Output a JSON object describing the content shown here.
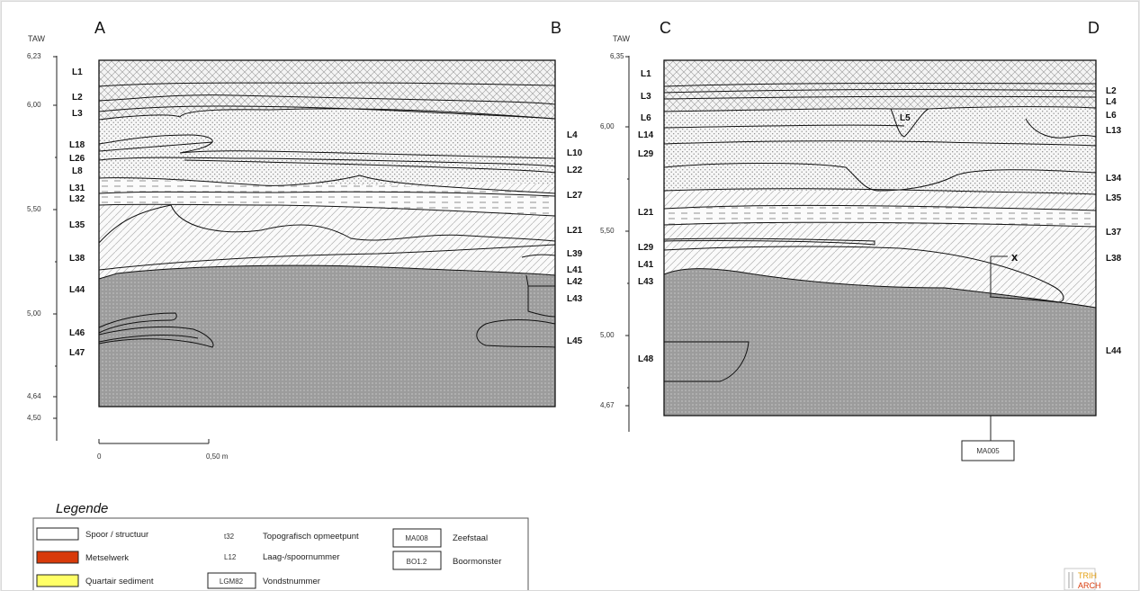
{
  "profile_left": {
    "corner_left": "A",
    "corner_right": "B",
    "axis_label": "TAW",
    "ticks": [
      "6,23",
      "6,00",
      "5,50",
      "5,00",
      "4,64",
      "4,50"
    ],
    "labels_left": [
      "L1",
      "L2",
      "L3",
      "L18",
      "L26",
      "L8",
      "L31",
      "L32",
      "L35",
      "L38",
      "L44",
      "L46",
      "L47"
    ],
    "labels_right": [
      "L4",
      "L10",
      "L22",
      "L27",
      "L21",
      "L39",
      "L41",
      "L42",
      "L43",
      "L45"
    ],
    "scale_start": "0",
    "scale_end": "0,50 m"
  },
  "profile_right": {
    "corner_left": "C",
    "corner_right": "D",
    "axis_label": "TAW",
    "ticks": [
      "6,35",
      "6,00",
      "5,50",
      "5,00",
      "4,67"
    ],
    "labels_left": [
      "L1",
      "L3",
      "L6",
      "L14",
      "L29",
      "L21",
      "L29",
      "L41",
      "L43",
      "L48"
    ],
    "labels_right": [
      "L2",
      "L4",
      "L6",
      "L13",
      "L34",
      "L35",
      "L37",
      "L38",
      "L44"
    ],
    "inner_label": "L5",
    "marker": "x",
    "sample_label": "MA005"
  },
  "legend": {
    "title": "Legende",
    "items": [
      {
        "label": "Spoor / structuur",
        "color": "#ffffff"
      },
      {
        "label": "Metselwerk",
        "color": "#d83a0a"
      },
      {
        "label": "Quartair sediment",
        "color": "#ffff66"
      }
    ],
    "codes": [
      {
        "code": "t32",
        "label": "Topografisch opmeetpunt"
      },
      {
        "code": "L12",
        "label": "Laag-/spoornummer"
      },
      {
        "code": "LGM82",
        "label": "Vondstnummer"
      }
    ],
    "samples": [
      {
        "code": "MA008",
        "label": "Zeefstaal"
      },
      {
        "code": "BO1.2",
        "label": "Boormonster"
      }
    ]
  },
  "logo": {
    "line1": "TRIH",
    "line2": "ARCH"
  }
}
